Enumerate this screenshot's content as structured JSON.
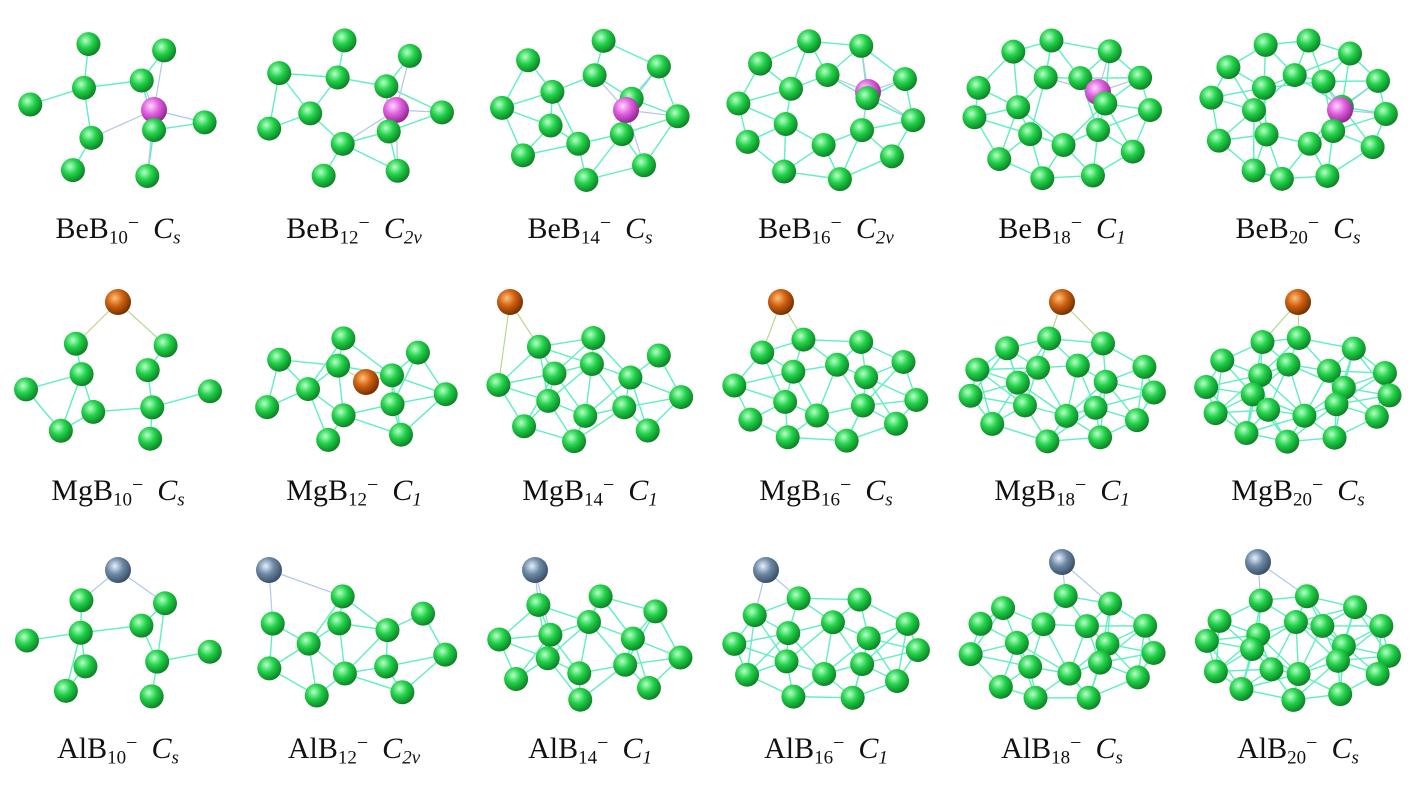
{
  "colors": {
    "boron": "#22d24a",
    "bond": "#5ef0c0",
    "beryllium": "#e060e0",
    "magnesium": "#d06010",
    "aluminum": "#6f8aa6"
  },
  "clusters": [
    [
      {
        "metal": "Be",
        "n": "10",
        "charge": "−",
        "sym": "C",
        "symSub": "s"
      },
      {
        "metal": "Be",
        "n": "12",
        "charge": "−",
        "sym": "C",
        "symSub": "2v"
      },
      {
        "metal": "Be",
        "n": "14",
        "charge": "−",
        "sym": "C",
        "symSub": "s"
      },
      {
        "metal": "Be",
        "n": "16",
        "charge": "−",
        "sym": "C",
        "symSub": "2v"
      },
      {
        "metal": "Be",
        "n": "18",
        "charge": "−",
        "sym": "C",
        "symSub": "1"
      },
      {
        "metal": "Be",
        "n": "20",
        "charge": "−",
        "sym": "C",
        "symSub": "s"
      }
    ],
    [
      {
        "metal": "Mg",
        "n": "10",
        "charge": "−",
        "sym": "C",
        "symSub": "s"
      },
      {
        "metal": "Mg",
        "n": "12",
        "charge": "−",
        "sym": "C",
        "symSub": "1"
      },
      {
        "metal": "Mg",
        "n": "14",
        "charge": "−",
        "sym": "C",
        "symSub": "1"
      },
      {
        "metal": "Mg",
        "n": "16",
        "charge": "−",
        "sym": "C",
        "symSub": "s"
      },
      {
        "metal": "Mg",
        "n": "18",
        "charge": "−",
        "sym": "C",
        "symSub": "1"
      },
      {
        "metal": "Mg",
        "n": "20",
        "charge": "−",
        "sym": "C",
        "symSub": "s"
      }
    ],
    [
      {
        "metal": "Al",
        "n": "10",
        "charge": "−",
        "sym": "C",
        "symSub": "s"
      },
      {
        "metal": "Al",
        "n": "12",
        "charge": "−",
        "sym": "C",
        "symSub": "2v"
      },
      {
        "metal": "Al",
        "n": "14",
        "charge": "−",
        "sym": "C",
        "symSub": "1"
      },
      {
        "metal": "Al",
        "n": "16",
        "charge": "−",
        "sym": "C",
        "symSub": "1"
      },
      {
        "metal": "Al",
        "n": "18",
        "charge": "−",
        "sym": "C",
        "symSub": "s"
      },
      {
        "metal": "Al",
        "n": "20",
        "charge": "−",
        "sym": "C",
        "symSub": "s"
      }
    ]
  ]
}
